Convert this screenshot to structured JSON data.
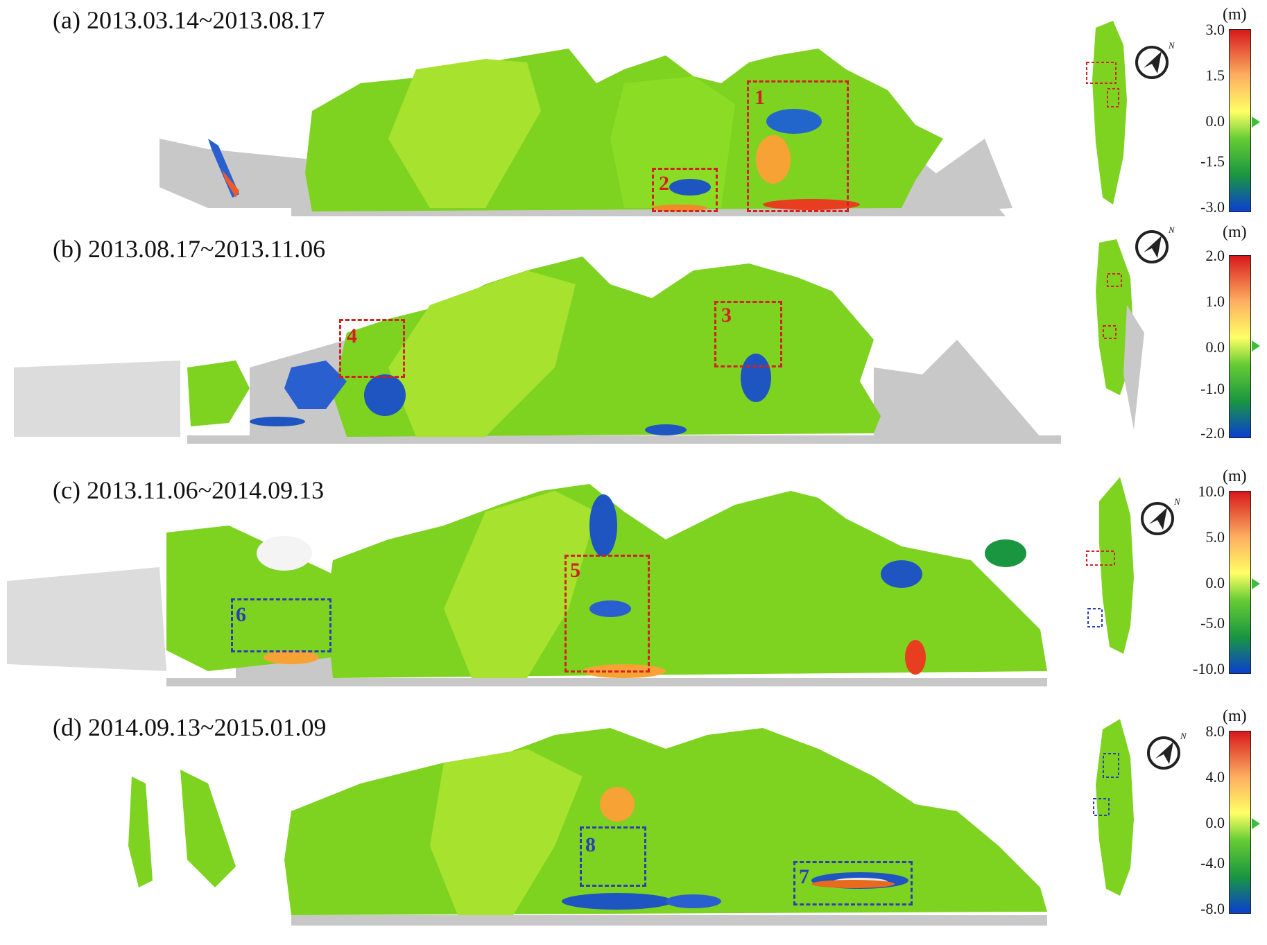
{
  "panels": [
    {
      "title": "(a) 2013.03.14~2013.08.17",
      "colorbar": {
        "unit": "(m)",
        "ticks": [
          "3.0",
          "1.5",
          "0.0",
          "-1.5",
          "-3.0"
        ]
      },
      "regions": [
        {
          "label": "1",
          "color": "#d42020"
        },
        {
          "label": "2",
          "color": "#d42020"
        }
      ]
    },
    {
      "title": "(b) 2013.08.17~2013.11.06",
      "colorbar": {
        "unit": "(m)",
        "ticks": [
          "2.0",
          "1.0",
          "0.0",
          "-1.0",
          "-2.0"
        ]
      },
      "regions": [
        {
          "label": "4",
          "color": "#d42020"
        },
        {
          "label": "3",
          "color": "#d42020"
        }
      ]
    },
    {
      "title": "(c) 2013.11.06~2014.09.13",
      "colorbar": {
        "unit": "(m)",
        "ticks": [
          "10.0",
          "5.0",
          "0.0",
          "-5.0",
          "-10.0"
        ]
      },
      "regions": [
        {
          "label": "6",
          "color": "#2b3fb3"
        },
        {
          "label": "5",
          "color": "#d42020"
        }
      ]
    },
    {
      "title": "(d) 2014.09.13~2015.01.09",
      "colorbar": {
        "unit": "(m)",
        "ticks": [
          "8.0",
          "4.0",
          "0.0",
          "-4.0",
          "-8.0"
        ]
      },
      "regions": [
        {
          "label": "8",
          "color": "#2b3fb3"
        },
        {
          "label": "7",
          "color": "#2b3fb3"
        }
      ]
    }
  ],
  "north_label": "N",
  "colors": {
    "terrain_green": "#7ed321",
    "terrain_light": "#a6e22e",
    "gray_area": "#c8c8c8",
    "colorbar_stops": [
      "#d7191c",
      "#fdae61",
      "#ffff66",
      "#66cc33",
      "#1a9641",
      "#0b3fd1"
    ]
  }
}
